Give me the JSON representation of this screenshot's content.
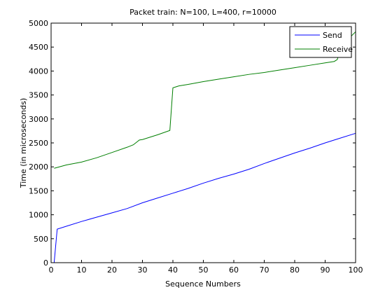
{
  "chart_data": {
    "type": "line",
    "title": "Packet train: N=100, L=400, r=10000",
    "xlabel": "Sequence Numbers",
    "ylabel": "Time (in microseconds)",
    "xlim": [
      0,
      100
    ],
    "ylim": [
      0,
      5000
    ],
    "xticks": [
      "0",
      "10",
      "20",
      "30",
      "40",
      "50",
      "60",
      "70",
      "80",
      "90",
      "100"
    ],
    "yticks": [
      "0",
      "500",
      "1000",
      "1500",
      "2000",
      "2500",
      "3000",
      "3500",
      "4000",
      "4500",
      "5000"
    ],
    "grid": false,
    "legend_position": "top-right",
    "series": [
      {
        "name": "Send",
        "color": "#0000ff",
        "points": [
          [
            1,
            0
          ],
          [
            2,
            700
          ],
          [
            5,
            760
          ],
          [
            10,
            860
          ],
          [
            15,
            950
          ],
          [
            20,
            1040
          ],
          [
            25,
            1130
          ],
          [
            30,
            1250
          ],
          [
            35,
            1350
          ],
          [
            40,
            1450
          ],
          [
            45,
            1550
          ],
          [
            50,
            1660
          ],
          [
            55,
            1760
          ],
          [
            60,
            1850
          ],
          [
            65,
            1950
          ],
          [
            70,
            2070
          ],
          [
            75,
            2180
          ],
          [
            80,
            2290
          ],
          [
            85,
            2390
          ],
          [
            90,
            2500
          ],
          [
            95,
            2600
          ],
          [
            100,
            2700
          ]
        ]
      },
      {
        "name": "Receive",
        "color": "#007f00",
        "points": [
          [
            1,
            1970
          ],
          [
            5,
            2040
          ],
          [
            10,
            2100
          ],
          [
            15,
            2190
          ],
          [
            20,
            2300
          ],
          [
            25,
            2410
          ],
          [
            27,
            2460
          ],
          [
            29,
            2560
          ],
          [
            30,
            2570
          ],
          [
            35,
            2670
          ],
          [
            39,
            2760
          ],
          [
            40,
            3650
          ],
          [
            42,
            3690
          ],
          [
            45,
            3720
          ],
          [
            50,
            3780
          ],
          [
            55,
            3830
          ],
          [
            60,
            3880
          ],
          [
            65,
            3930
          ],
          [
            70,
            3970
          ],
          [
            75,
            4020
          ],
          [
            80,
            4070
          ],
          [
            85,
            4120
          ],
          [
            90,
            4170
          ],
          [
            93,
            4200
          ],
          [
            94,
            4240
          ],
          [
            95,
            4500
          ],
          [
            100,
            4820
          ]
        ]
      }
    ]
  }
}
